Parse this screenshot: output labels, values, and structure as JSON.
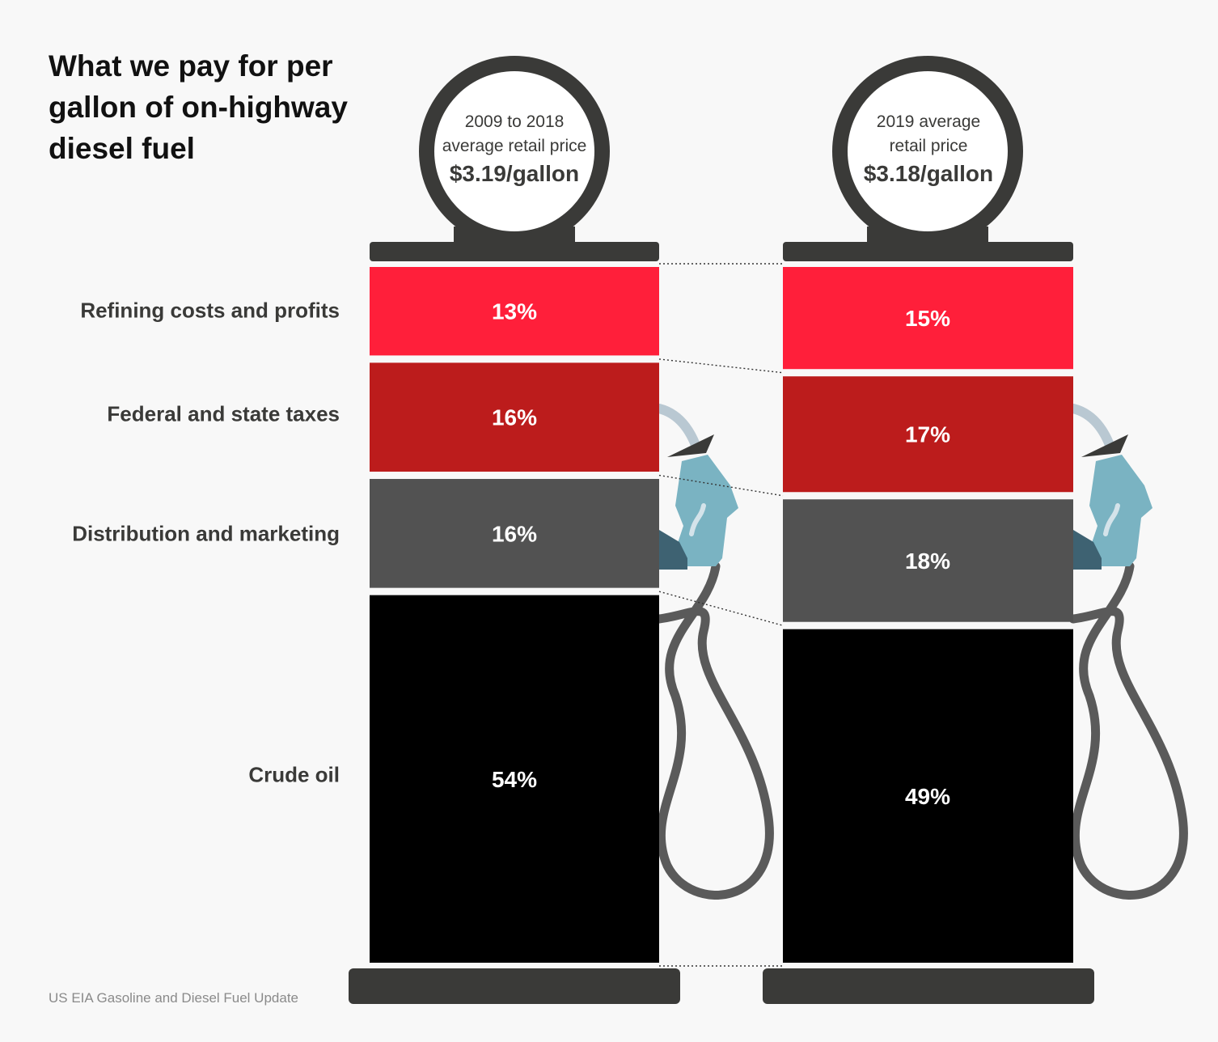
{
  "chart_data": {
    "type": "bar",
    "stacked": true,
    "title": "What we pay for per gallon of on-highway diesel fuel",
    "categories": [
      "Refining costs and profits",
      "Federal and state taxes",
      "Distribution and marketing",
      "Crude oil"
    ],
    "series": [
      {
        "period": "2009 to 2018",
        "subtitle_line1": "2009 to 2018",
        "subtitle_line2": "average retail price",
        "price": "$3.19/gallon",
        "values": [
          13,
          16,
          16,
          54
        ],
        "value_labels": [
          "13%",
          "16%",
          "16%",
          "54%"
        ]
      },
      {
        "period": "2019",
        "subtitle_line1": "2019 average",
        "subtitle_line2": "retail price",
        "price": "$3.18/gallon",
        "values": [
          15,
          17,
          18,
          49
        ],
        "value_labels": [
          "15%",
          "17%",
          "18%",
          "49%"
        ]
      }
    ],
    "colors": [
      "#ff1f3a",
      "#bc1c1c",
      "#525252",
      "#000000"
    ],
    "source": "US EIA Gasoline and Diesel Fuel Update"
  }
}
